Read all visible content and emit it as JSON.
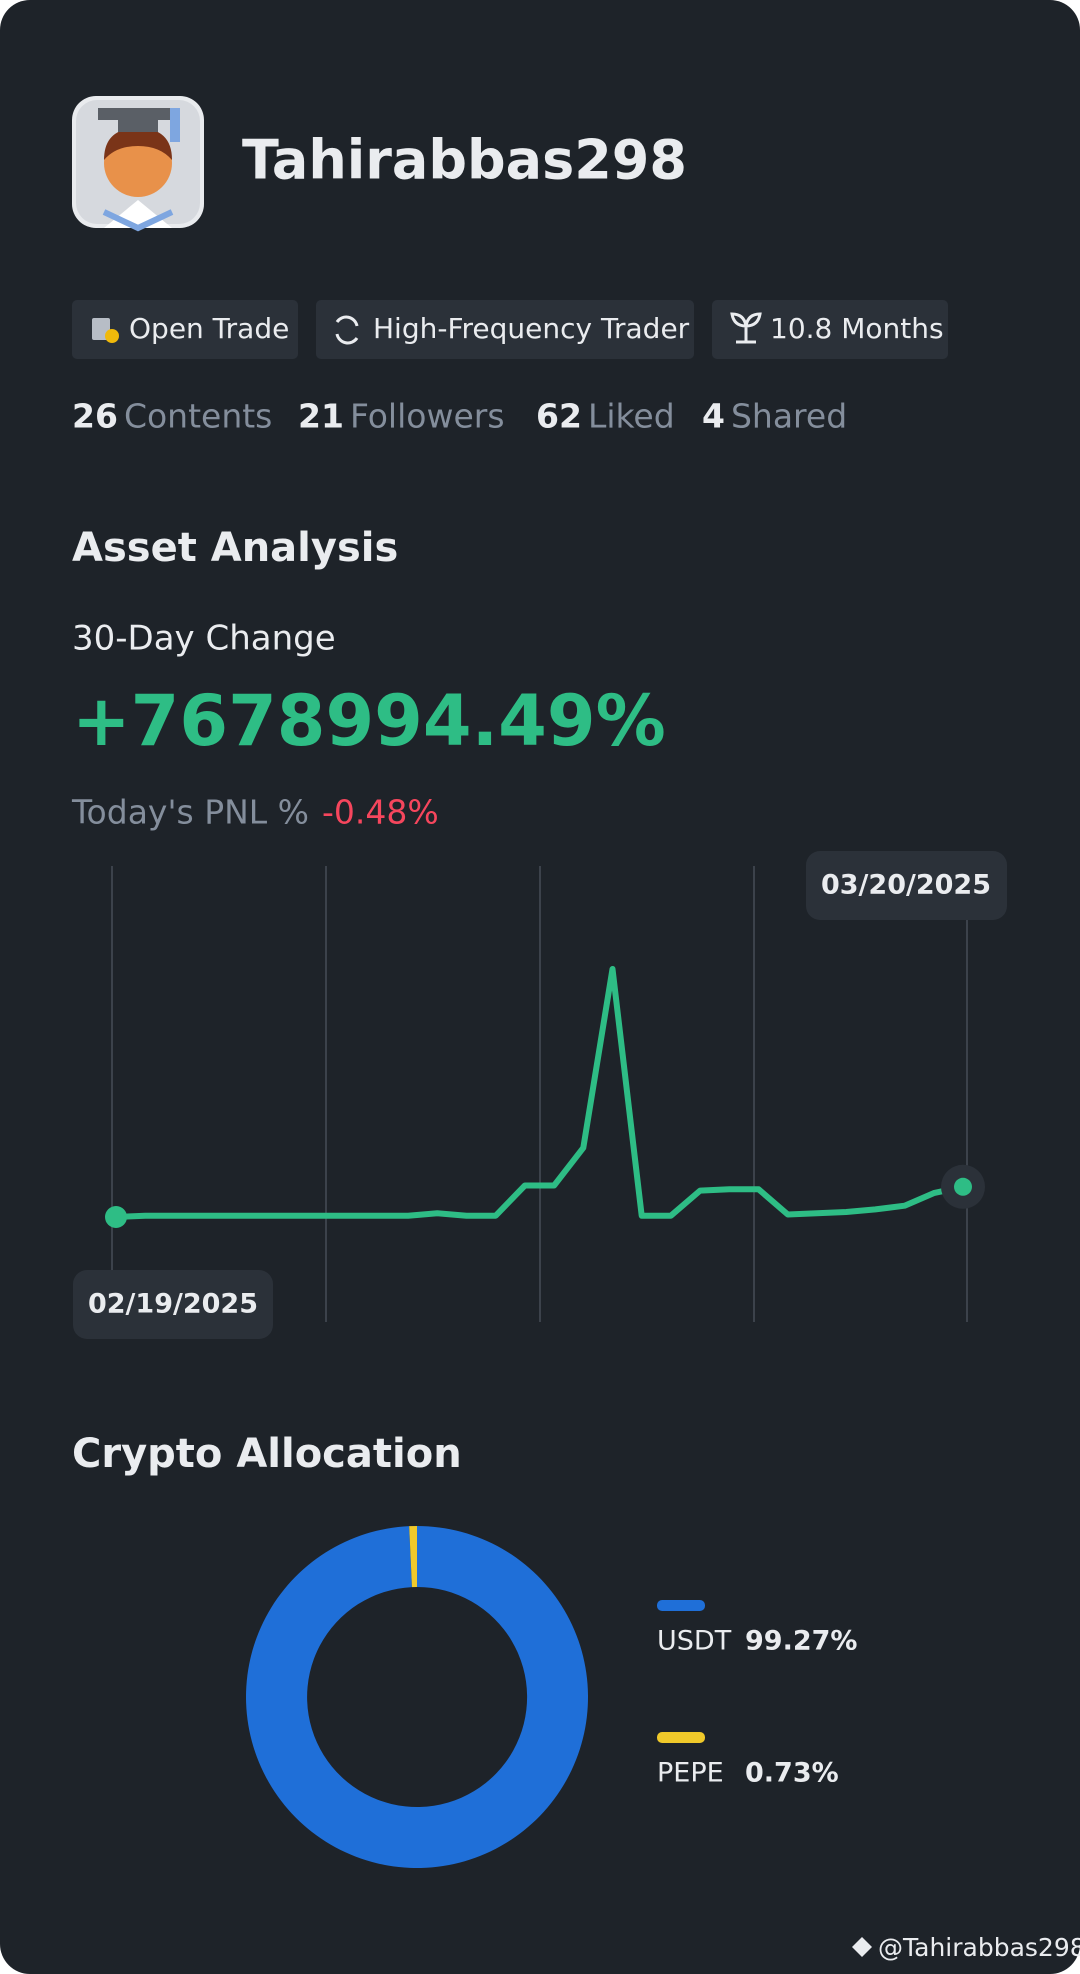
{
  "profile": {
    "name": "Tahirabbas298",
    "tags": [
      "Open Trade",
      "High-Frequency Trader",
      "10.8 Months"
    ],
    "stats": [
      {
        "value": 26,
        "label": "Contents"
      },
      {
        "value": 21,
        "label": "Followers"
      },
      {
        "value": 62,
        "label": "Liked"
      },
      {
        "value": 4,
        "label": "Shared"
      }
    ]
  },
  "asset_analysis": {
    "title": "Asset Analysis",
    "subtitle": "30-Day Change",
    "change": "+7678994.49%",
    "pnl_label": "Today's PNL %",
    "pnl_value": "-0.48%"
  },
  "chart_data": [
    {
      "type": "line",
      "categories": [
        "02/19/2025",
        null,
        null,
        null,
        null,
        null,
        null,
        null,
        null,
        null,
        null,
        null,
        null,
        null,
        null,
        null,
        null,
        null,
        null,
        null,
        null,
        null,
        null,
        null,
        null,
        null,
        null,
        null,
        null,
        "03/20/2025"
      ],
      "values": [
        0,
        1,
        1,
        1,
        1,
        1,
        1,
        1,
        1,
        1,
        1,
        3,
        1,
        1,
        25,
        25,
        55,
        197,
        1,
        1,
        21,
        22,
        22,
        2,
        3,
        4,
        6,
        9,
        19,
        24
      ],
      "color": "#2ebd85",
      "grid": true
    },
    {
      "type": "pie",
      "title": "Crypto Allocation",
      "categories": [
        "USDT",
        "PEPE"
      ],
      "values": [
        99.27,
        0.73
      ],
      "value_labels": [
        "99.27%",
        "0.73%"
      ],
      "colors": [
        "#1f6fd8",
        "#f0c92a"
      ]
    }
  ],
  "watermark": "@Tahirabbas298"
}
